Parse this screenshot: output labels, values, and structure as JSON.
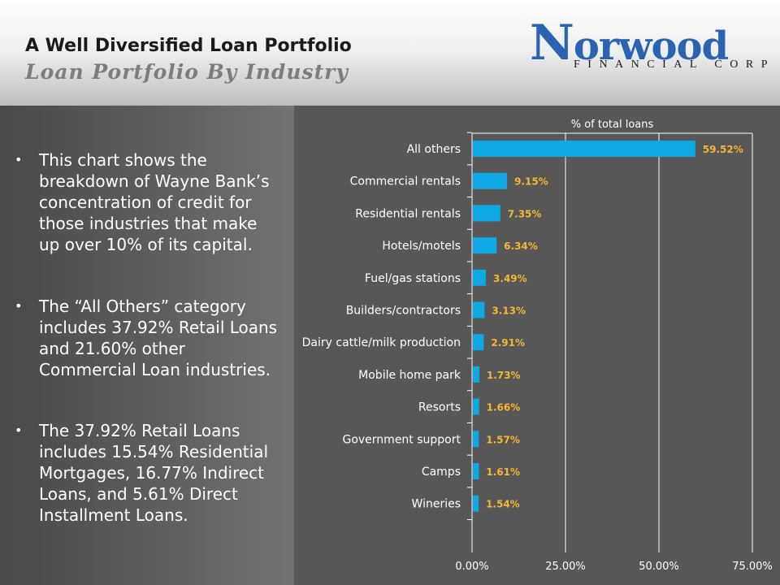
{
  "header": {
    "title": "A Well Diversified Loan Portfolio",
    "subtitle": "Loan Portfolio By Industry"
  },
  "logo": {
    "initial": "N",
    "name_rest": "orwood",
    "tagline": "FINANCIAL CORP",
    "color": "#2a63b2"
  },
  "bullets": [
    "This chart shows the breakdown of Wayne Bank’s concentration of credit for those industries that make up over 10% of its capital.",
    "The “All Others” category includes 37.92% Retail Loans and 21.60% other Commercial Loan industries.",
    "The 37.92% Retail Loans includes 15.54% Residential Mortgages, 16.77% Indirect Loans, and 5.61% Direct Installment Loans."
  ],
  "chart_data": {
    "type": "bar",
    "orientation": "horizontal",
    "title": "% of total loans",
    "categories": [
      "All others",
      "Commercial rentals",
      "Residential rentals",
      "Hotels/motels",
      "Fuel/gas stations",
      "Builders/contractors",
      "Dairy cattle/milk production",
      "Mobile home park",
      "Resorts",
      "Government support",
      "Camps",
      "Wineries"
    ],
    "values": [
      59.52,
      9.15,
      7.35,
      6.34,
      3.49,
      3.13,
      2.91,
      1.73,
      1.66,
      1.57,
      1.61,
      1.54
    ],
    "data_labels": [
      "59.52%",
      "9.15%",
      "7.35%",
      "6.34%",
      "3.49%",
      "3.13%",
      "2.91%",
      "1.73%",
      "1.66%",
      "1.57%",
      "1.61%",
      "1.54%"
    ],
    "xlim": [
      0,
      75
    ],
    "ticks": [
      0,
      25,
      50,
      75
    ],
    "tick_labels": [
      "0.00%",
      "25.00%",
      "50.00%",
      "75.00%"
    ],
    "axis_position": "top",
    "grid": true,
    "bar_color": "#0fa8e4",
    "label_color": "#f5b731"
  }
}
